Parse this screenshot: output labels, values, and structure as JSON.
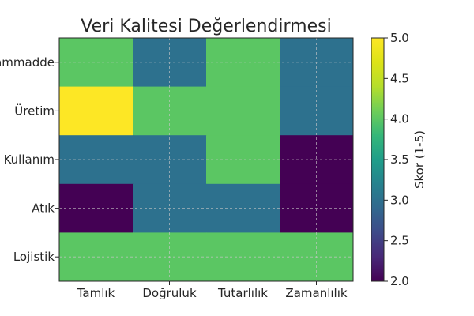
{
  "chart_data": {
    "type": "heatmap",
    "title": "Veri Kalitesi Değerlendirmesi",
    "x_categories": [
      "Tamlık",
      "Doğruluk",
      "Tutarlılık",
      "Zamanlılık"
    ],
    "y_categories": [
      "Hammadde",
      "Üretim",
      "Kullanım",
      "Atık",
      "Lojistik"
    ],
    "values": [
      [
        4,
        3,
        4,
        3
      ],
      [
        5,
        4,
        4,
        3
      ],
      [
        3,
        3,
        4,
        2
      ],
      [
        2,
        3,
        3,
        2
      ],
      [
        4,
        4,
        4,
        4
      ]
    ],
    "colorbar": {
      "label": "Skor (1-5)",
      "range": [
        2.0,
        5.0
      ],
      "ticks": [
        "2.0",
        "2.5",
        "3.0",
        "3.5",
        "4.0",
        "4.5",
        "5.0"
      ],
      "colormap": "viridis"
    },
    "grid": true
  }
}
